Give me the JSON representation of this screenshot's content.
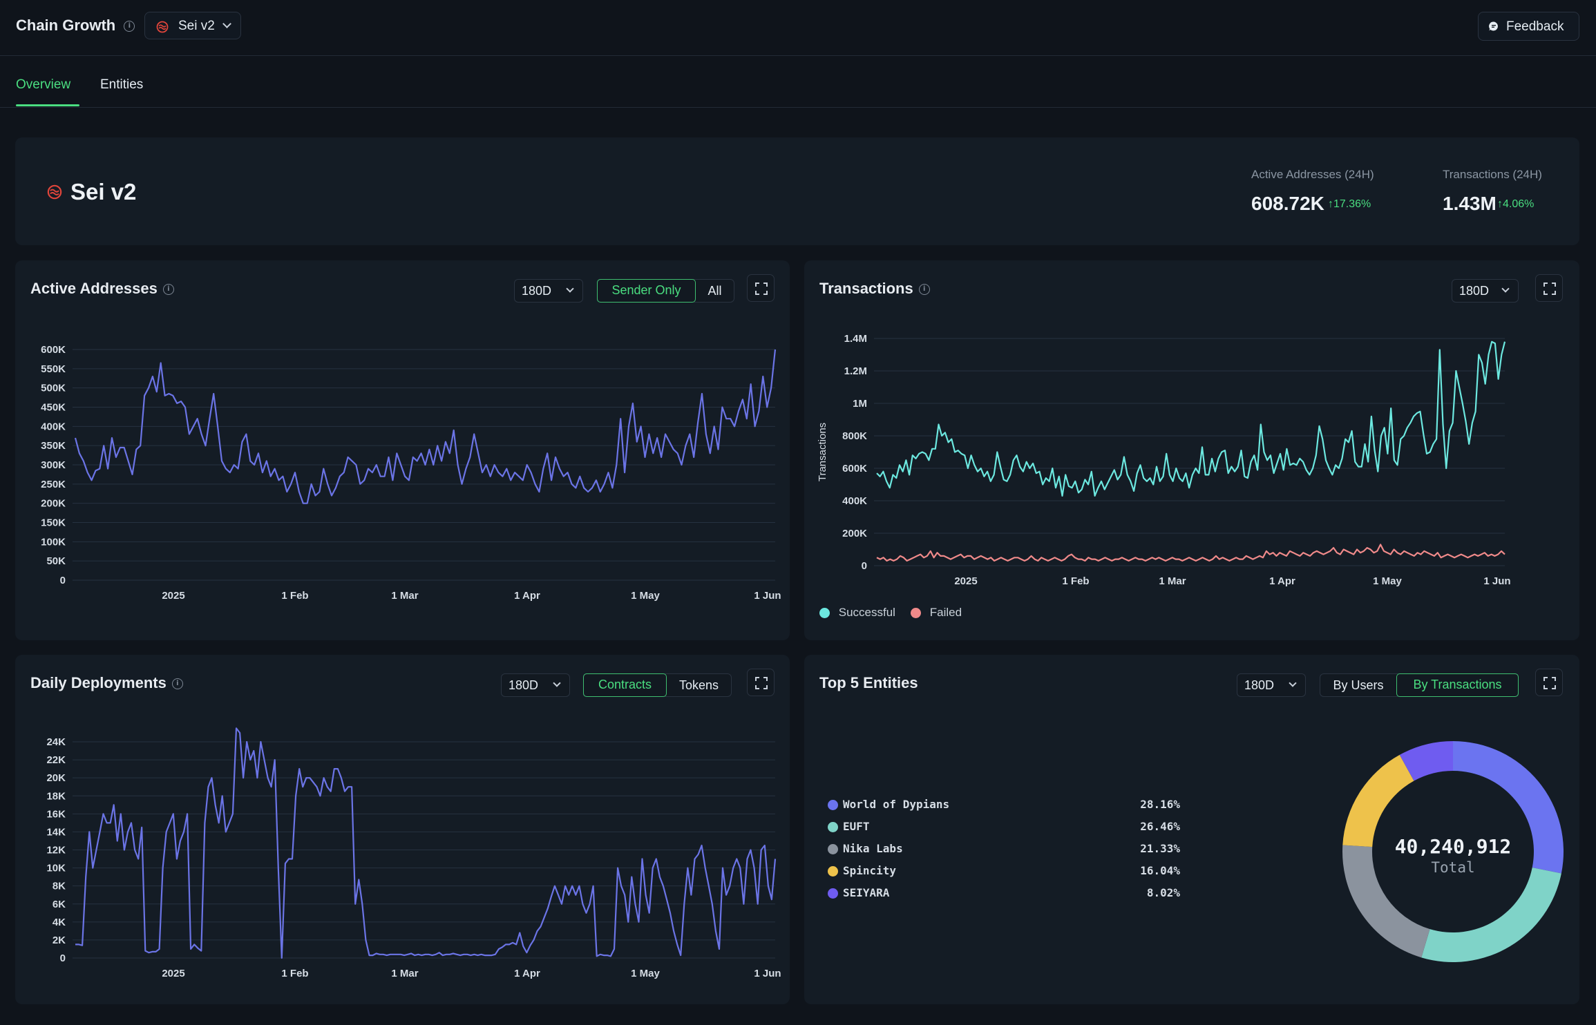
{
  "header": {
    "title": "Chain Growth",
    "chain_select": "Sei v2",
    "feedback_label": "Feedback"
  },
  "tabs": [
    {
      "label": "Overview",
      "active": true
    },
    {
      "label": "Entities",
      "active": false
    }
  ],
  "hero": {
    "chain_name": "Sei v2",
    "stats": [
      {
        "label": "Active Addresses (24H)",
        "value": "608.72K",
        "change": "17.36%"
      },
      {
        "label": "Transactions (24H)",
        "value": "1.43M",
        "change": "4.06%"
      }
    ]
  },
  "colors": {
    "accent_green": "#4ade80",
    "series_blue": "#6b74e6",
    "successful": "#6ce8e0",
    "failed": "#f08a8a"
  },
  "cards": {
    "active_addresses": {
      "title": "Active Addresses",
      "range": "180D",
      "toggle": [
        "Sender Only",
        "All"
      ],
      "toggle_active": 0
    },
    "transactions": {
      "title": "Transactions",
      "range": "180D",
      "legend": [
        "Successful",
        "Failed"
      ]
    },
    "daily_deployments": {
      "title": "Daily Deployments",
      "range": "180D",
      "toggle": [
        "Contracts",
        "Tokens"
      ],
      "toggle_active": 0
    },
    "top_entities": {
      "title": "Top 5 Entities",
      "range": "180D",
      "toggle": [
        "By Users",
        "By Transactions"
      ],
      "toggle_active": 1,
      "total_value": "40,240,912",
      "total_label": "Total",
      "entities": [
        {
          "name": "World of Dypians",
          "pct": "28.16%",
          "value": 28.16,
          "color": "#6b74f0"
        },
        {
          "name": "EUFT",
          "pct": "26.46%",
          "value": 26.46,
          "color": "#7fd3c8"
        },
        {
          "name": "Nika Labs",
          "pct": "21.33%",
          "value": 21.33,
          "color": "#8b939e"
        },
        {
          "name": "Spincity",
          "pct": "16.04%",
          "value": 16.04,
          "color": "#eec24b"
        },
        {
          "name": "SEIYARA",
          "pct": "8.02%",
          "value": 8.02,
          "color": "#6f5cf0"
        }
      ]
    }
  },
  "chart_data": [
    {
      "id": "active_addresses",
      "type": "line",
      "x_ticks": [
        "2025",
        "1 Feb",
        "1 Mar",
        "1 Apr",
        "1 May",
        "1 Jun"
      ],
      "y_ticks": [
        "0",
        "50K",
        "100K",
        "150K",
        "200K",
        "250K",
        "300K",
        "350K",
        "400K",
        "450K",
        "500K",
        "550K",
        "600K"
      ],
      "ylim": [
        0,
        600000
      ],
      "grid": true,
      "series": [
        {
          "color": "#6b74e6",
          "values": [
            370000,
            330000,
            310000,
            280000,
            260000,
            285000,
            290000,
            350000,
            290000,
            370000,
            320000,
            345000,
            345000,
            310000,
            275000,
            340000,
            350000,
            480000,
            500000,
            530000,
            490000,
            565000,
            480000,
            485000,
            480000,
            460000,
            465000,
            450000,
            380000,
            400000,
            420000,
            380000,
            350000,
            420000,
            485000,
            400000,
            310000,
            290000,
            280000,
            300000,
            290000,
            360000,
            380000,
            310000,
            300000,
            330000,
            280000,
            310000,
            270000,
            290000,
            260000,
            270000,
            230000,
            250000,
            280000,
            230000,
            200000,
            200000,
            250000,
            220000,
            230000,
            290000,
            250000,
            220000,
            240000,
            270000,
            280000,
            320000,
            310000,
            300000,
            250000,
            260000,
            290000,
            280000,
            300000,
            270000,
            270000,
            320000,
            260000,
            330000,
            300000,
            270000,
            260000,
            320000,
            310000,
            330000,
            300000,
            340000,
            300000,
            350000,
            310000,
            360000,
            330000,
            390000,
            300000,
            250000,
            290000,
            320000,
            380000,
            330000,
            280000,
            300000,
            270000,
            300000,
            280000,
            270000,
            290000,
            260000,
            280000,
            270000,
            260000,
            300000,
            280000,
            250000,
            230000,
            290000,
            330000,
            260000,
            320000,
            290000,
            270000,
            280000,
            250000,
            240000,
            270000,
            240000,
            230000,
            240000,
            260000,
            230000,
            250000,
            280000,
            240000,
            300000,
            420000,
            280000,
            400000,
            460000,
            360000,
            400000,
            320000,
            380000,
            330000,
            370000,
            320000,
            380000,
            360000,
            340000,
            330000,
            300000,
            350000,
            380000,
            320000,
            410000,
            485000,
            380000,
            330000,
            400000,
            340000,
            450000,
            420000,
            420000,
            400000,
            440000,
            470000,
            420000,
            510000,
            400000,
            440000,
            530000,
            450000,
            500000,
            600000
          ]
        }
      ]
    },
    {
      "id": "transactions",
      "type": "line",
      "ylabel": "Transactions",
      "x_ticks": [
        "2025",
        "1 Feb",
        "1 Mar",
        "1 Apr",
        "1 May",
        "1 Jun"
      ],
      "y_ticks": [
        "0",
        "200K",
        "400K",
        "600K",
        "800K",
        "1M",
        "1.2M",
        "1.4M"
      ],
      "ylim": [
        0,
        1400000
      ],
      "grid": true,
      "series": [
        {
          "name": "Successful",
          "color": "#6ce8e0",
          "values": [
            570000,
            550000,
            580000,
            520000,
            480000,
            560000,
            540000,
            620000,
            580000,
            650000,
            560000,
            680000,
            660000,
            690000,
            700000,
            690000,
            650000,
            720000,
            720000,
            870000,
            800000,
            820000,
            760000,
            780000,
            700000,
            710000,
            690000,
            680000,
            600000,
            680000,
            620000,
            580000,
            600000,
            550000,
            580000,
            520000,
            560000,
            700000,
            610000,
            530000,
            520000,
            560000,
            650000,
            680000,
            610000,
            580000,
            640000,
            600000,
            630000,
            570000,
            580000,
            500000,
            540000,
            520000,
            600000,
            480000,
            550000,
            430000,
            560000,
            490000,
            480000,
            520000,
            450000,
            470000,
            530000,
            500000,
            580000,
            430000,
            480000,
            520000,
            470000,
            510000,
            550000,
            590000,
            530000,
            560000,
            670000,
            560000,
            520000,
            460000,
            570000,
            620000,
            540000,
            520000,
            540000,
            500000,
            610000,
            520000,
            550000,
            690000,
            560000,
            520000,
            600000,
            540000,
            520000,
            570000,
            480000,
            560000,
            600000,
            570000,
            730000,
            560000,
            560000,
            660000,
            580000,
            660000,
            700000,
            710000,
            570000,
            610000,
            580000,
            610000,
            710000,
            550000,
            540000,
            640000,
            680000,
            590000,
            870000,
            700000,
            650000,
            680000,
            570000,
            630000,
            690000,
            590000,
            720000,
            620000,
            630000,
            620000,
            660000,
            640000,
            590000,
            560000,
            600000,
            680000,
            860000,
            780000,
            650000,
            600000,
            560000,
            620000,
            600000,
            660000,
            780000,
            760000,
            830000,
            640000,
            610000,
            610000,
            750000,
            640000,
            920000,
            710000,
            580000,
            800000,
            850000,
            690000,
            970000,
            650000,
            620000,
            780000,
            800000,
            850000,
            880000,
            920000,
            940000,
            950000,
            810000,
            690000,
            700000,
            750000,
            780000,
            1330000,
            870000,
            600000,
            830000,
            880000,
            1200000,
            1100000,
            1000000,
            890000,
            750000,
            880000,
            950000,
            1300000,
            1250000,
            1120000,
            1300000,
            1380000,
            1370000,
            1150000,
            1300000,
            1380000
          ]
        },
        {
          "name": "Failed",
          "color": "#f08a8a",
          "values": [
            50000,
            40000,
            50000,
            30000,
            40000,
            30000,
            40000,
            60000,
            50000,
            30000,
            40000,
            50000,
            60000,
            70000,
            50000,
            60000,
            90000,
            50000,
            80000,
            60000,
            60000,
            50000,
            40000,
            50000,
            60000,
            70000,
            50000,
            60000,
            60000,
            40000,
            50000,
            60000,
            50000,
            40000,
            50000,
            30000,
            40000,
            50000,
            40000,
            30000,
            40000,
            50000,
            50000,
            40000,
            30000,
            40000,
            60000,
            40000,
            30000,
            50000,
            40000,
            30000,
            40000,
            50000,
            40000,
            30000,
            40000,
            60000,
            70000,
            50000,
            40000,
            40000,
            30000,
            50000,
            40000,
            40000,
            30000,
            40000,
            50000,
            40000,
            30000,
            40000,
            40000,
            50000,
            40000,
            30000,
            40000,
            50000,
            40000,
            40000,
            30000,
            40000,
            50000,
            40000,
            50000,
            40000,
            30000,
            40000,
            50000,
            40000,
            40000,
            30000,
            40000,
            50000,
            40000,
            30000,
            40000,
            50000,
            40000,
            30000,
            40000,
            60000,
            40000,
            50000,
            40000,
            30000,
            40000,
            50000,
            40000,
            40000,
            60000,
            50000,
            40000,
            50000,
            60000,
            50000,
            90000,
            70000,
            80000,
            60000,
            80000,
            70000,
            60000,
            90000,
            80000,
            70000,
            60000,
            80000,
            70000,
            60000,
            80000,
            90000,
            80000,
            70000,
            80000,
            90000,
            110000,
            80000,
            70000,
            100000,
            90000,
            80000,
            70000,
            100000,
            80000,
            90000,
            110000,
            100000,
            80000,
            90000,
            130000,
            90000,
            80000,
            70000,
            100000,
            80000,
            70000,
            90000,
            80000,
            70000,
            60000,
            80000,
            70000,
            90000,
            80000,
            70000,
            60000,
            80000,
            50000,
            60000,
            70000,
            60000,
            50000,
            60000,
            70000,
            60000,
            50000,
            60000,
            70000,
            60000,
            70000,
            80000,
            60000,
            70000,
            60000,
            70000,
            90000,
            70000
          ]
        }
      ]
    },
    {
      "id": "daily_deployments",
      "type": "line",
      "x_ticks": [
        "2025",
        "1 Feb",
        "1 Mar",
        "1 Apr",
        "1 May",
        "1 Jun"
      ],
      "y_ticks": [
        "0",
        "2K",
        "4K",
        "6K",
        "8K",
        "10K",
        "12K",
        "14K",
        "16K",
        "18K",
        "20K",
        "22K",
        "24K"
      ],
      "ylim": [
        0,
        24000
      ],
      "grid": true,
      "series": [
        {
          "color": "#6b74e6",
          "values": [
            1500,
            1500,
            1400,
            9000,
            14000,
            10000,
            12000,
            14000,
            16000,
            15000,
            15000,
            17000,
            13000,
            16000,
            12000,
            14000,
            15000,
            12000,
            11000,
            14500,
            800,
            600,
            700,
            700,
            1000,
            10000,
            14000,
            15000,
            16000,
            11000,
            13000,
            14000,
            16000,
            1000,
            1500,
            1100,
            800,
            15000,
            19000,
            20000,
            17000,
            15000,
            18000,
            14000,
            15000,
            16000,
            25500,
            25000,
            20000,
            24000,
            22000,
            23000,
            20000,
            24000,
            22000,
            20000,
            19000,
            22000,
            10000,
            0,
            10500,
            11000,
            11000,
            18000,
            21000,
            19000,
            20000,
            20000,
            19500,
            19000,
            18000,
            20000,
            19000,
            18500,
            21000,
            21000,
            20000,
            18500,
            19000,
            19000,
            6000,
            8700,
            6000,
            2000,
            300,
            300,
            500,
            400,
            400,
            300,
            400,
            400,
            400,
            400,
            300,
            400,
            500,
            300,
            400,
            300,
            400,
            400,
            300,
            400,
            600,
            300,
            400,
            400,
            500,
            400,
            300,
            400,
            400,
            300,
            400,
            300,
            400,
            300,
            300,
            300,
            400,
            1000,
            1200,
            1500,
            1500,
            1700,
            1500,
            2800,
            1300,
            600,
            1400,
            2000,
            3000,
            3500,
            4500,
            5500,
            6800,
            8000,
            7000,
            6000,
            8000,
            7000,
            8000,
            7000,
            8000,
            6000,
            5000,
            6000,
            8000,
            200,
            400,
            300,
            300,
            200,
            1000,
            10000,
            8000,
            7000,
            4000,
            9000,
            6000,
            4000,
            11000,
            7000,
            5000,
            10000,
            11000,
            9000,
            8000,
            6500,
            5000,
            3000,
            1500,
            300,
            6000,
            10000,
            7000,
            11000,
            11500,
            12500,
            10000,
            8000,
            6000,
            3000,
            1000,
            10000,
            7000,
            8000,
            10000,
            11000,
            10000,
            6000,
            11000,
            12000,
            10000,
            6000,
            12000,
            12500,
            8000,
            6500,
            11000
          ]
        }
      ]
    },
    {
      "id": "top_entities",
      "type": "pie",
      "donut": true,
      "labels": [
        "World of Dypians",
        "EUFT",
        "Nika Labs",
        "Spincity",
        "SEIYARA"
      ],
      "values": [
        28.16,
        26.46,
        21.33,
        16.04,
        8.02
      ],
      "center_text": "40,240,912",
      "center_subtext": "Total"
    }
  ]
}
